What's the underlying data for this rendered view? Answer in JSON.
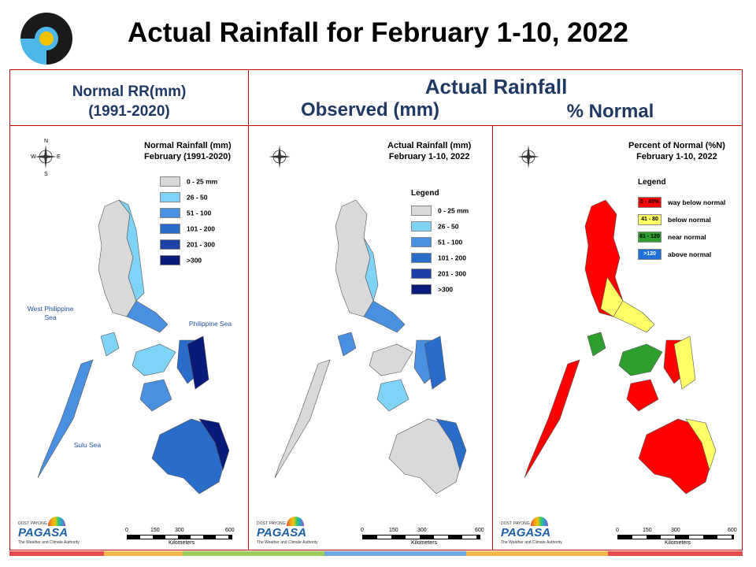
{
  "title": "Actual Rainfall for February 1-10, 2022",
  "header": {
    "normal_line1": "Normal RR(mm)",
    "normal_line2": "(1991-2020)",
    "actual": "Actual Rainfall",
    "observed": "Observed (mm)",
    "percent": "% Normal"
  },
  "panels": [
    {
      "title_line1": "Normal Rainfall (mm)",
      "title_line2": "February (1991-2020)",
      "legend_title": "",
      "legend": [
        {
          "label": "0 - 25 mm",
          "color": "#d9d9d9"
        },
        {
          "label": "26 - 50",
          "color": "#7fd3f7"
        },
        {
          "label": "51 - 100",
          "color": "#4a90e2"
        },
        {
          "label": "101 - 200",
          "color": "#2a6cc9"
        },
        {
          "label": "201 - 300",
          "color": "#1c3fa8"
        },
        {
          "label": ">300",
          "color": "#0a1a7a"
        }
      ],
      "seas": [
        "West Philippine Sea",
        "Philippine Sea",
        "Sulu Sea"
      ]
    },
    {
      "title_line1": "Actual Rainfall (mm)",
      "title_line2": "February 1-10, 2022",
      "legend_title": "Legend",
      "legend": [
        {
          "label": "0 - 25 mm",
          "color": "#d9d9d9"
        },
        {
          "label": "26 - 50",
          "color": "#7fd3f7"
        },
        {
          "label": "51 - 100",
          "color": "#4a90e2"
        },
        {
          "label": "101 - 200",
          "color": "#2a6cc9"
        },
        {
          "label": "201 - 300",
          "color": "#1c3fa8"
        },
        {
          "label": ">300",
          "color": "#0a1a7a"
        }
      ]
    },
    {
      "title_line1": "Percent of Normal (%N)",
      "title_line2": "February 1-10, 2022",
      "legend_title": "Legend",
      "legend": [
        {
          "swatch": "0 - 40%",
          "label": "way below normal",
          "color": "#ff0000"
        },
        {
          "swatch": "41 - 80",
          "label": "below normal",
          "color": "#ffff66"
        },
        {
          "swatch": "81 - 120",
          "label": "near normal",
          "color": "#2e9e2e"
        },
        {
          "swatch": ">120",
          "label": "above normal",
          "color": "#1f6fd6"
        }
      ]
    }
  ],
  "scale": {
    "ticks": [
      "0",
      "150",
      "300",
      "600"
    ],
    "unit": "Kilometers"
  },
  "compass": {
    "n": "N",
    "s": "S",
    "e": "E",
    "w": "W"
  },
  "branding": {
    "dost": "DOST",
    "payong": "PAYONG",
    "name": "PAGASA",
    "tagline": "The Weather and Climate Authority"
  },
  "colors": {
    "title": "#000000",
    "header": "#1f3864",
    "frame": "#c00000",
    "sea_label": "#1f4e9c"
  }
}
